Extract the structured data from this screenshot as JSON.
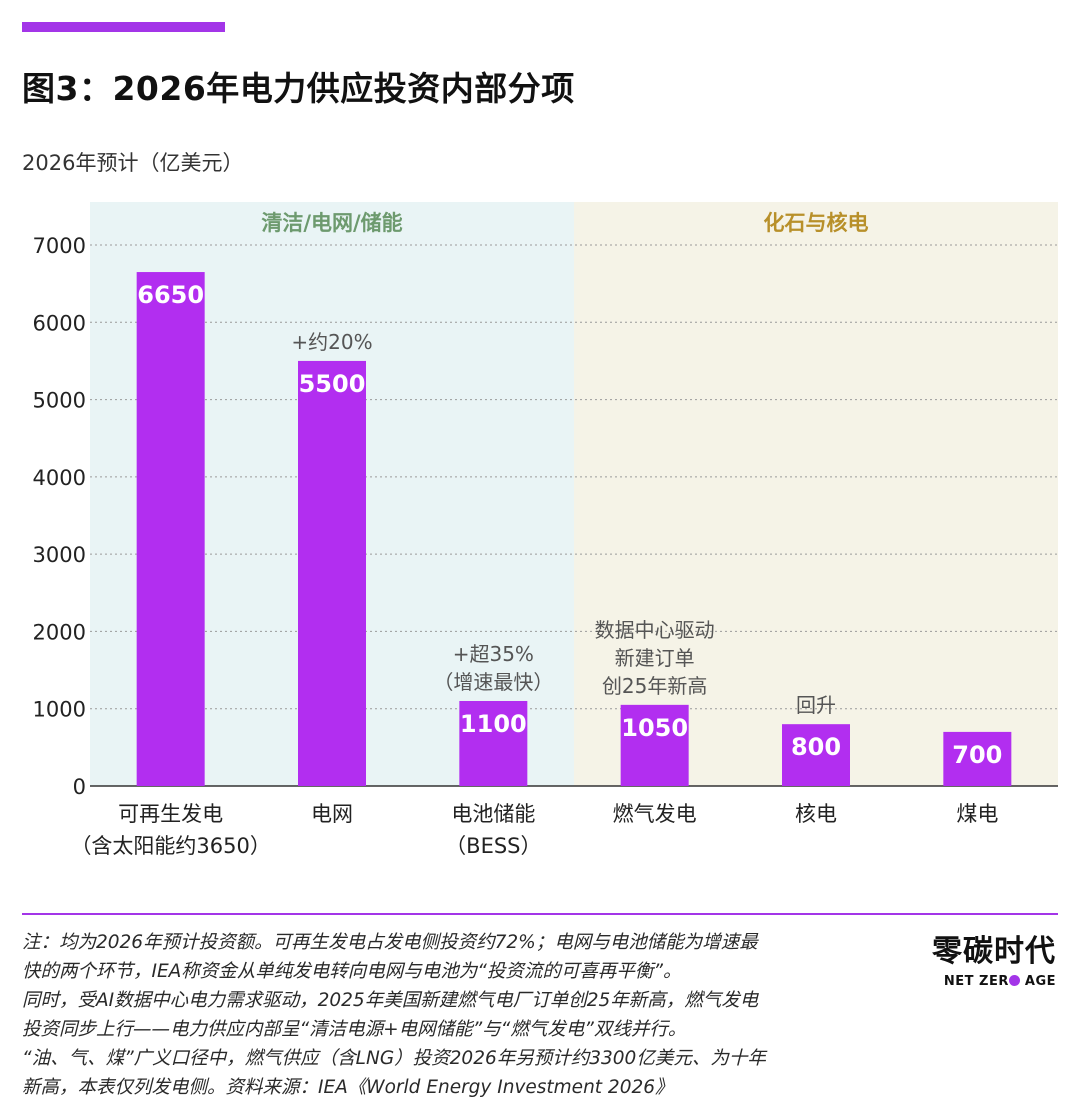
{
  "header": {
    "title": "图3：2026年电力供应投资内部分项",
    "unit_label": "2026年预计（亿美元）"
  },
  "colors": {
    "accent": "#a335e8",
    "bar": "#b22ef0",
    "group_clean_bg": "#e9f4f5",
    "group_fossil_bg": "#f5f3e7",
    "group_clean_text": "#6d9a6e",
    "group_fossil_text": "#b8902a",
    "annotation": "#555555"
  },
  "chart_data": {
    "type": "bar",
    "ylim": [
      0,
      7000
    ],
    "yticks": [
      0,
      1000,
      2000,
      3000,
      4000,
      5000,
      6000,
      7000
    ],
    "grid": true,
    "groups": [
      {
        "label": "清洁/电网/储能",
        "start": 0,
        "end": 2
      },
      {
        "label": "化石与核电",
        "start": 3,
        "end": 5
      }
    ],
    "categories": [
      [
        "可再生发电",
        "（含太阳能约3650）"
      ],
      [
        "电网"
      ],
      [
        "电池储能",
        "（BESS）"
      ],
      [
        "燃气发电"
      ],
      [
        "核电"
      ],
      [
        "煤电"
      ]
    ],
    "values": [
      6650,
      5500,
      1100,
      1050,
      800,
      700
    ],
    "value_labels": [
      "6650",
      "5500",
      "1100",
      "1050",
      "800",
      "700"
    ],
    "annotations": [
      [],
      [
        "+约20%"
      ],
      [
        "+超35%",
        "（增速最快）"
      ],
      [
        "数据中心驱动",
        "新建订单",
        "创25年新高"
      ],
      [
        "回升"
      ],
      []
    ]
  },
  "footnote": {
    "lines": [
      "注：均为2026年预计投资额。可再生发电占发电侧投资约72%；电网与电池储能为增速最",
      "快的两个环节，IEA称资金从单纯发电转向电网与电池为“投资流的可喜再平衡”。",
      "同时，受AI数据中心电力需求驱动，2025年美国新建燃气电厂订单创25年新高，燃气发电",
      "投资同步上行——电力供应内部呈“清洁电源+电网储能”与“燃气发电”双线并行。",
      "“油、气、煤”广义口径中，燃气供应（含LNG）投资2026年另预计约3300亿美元、为十年",
      "新高，本表仅列发电侧。资料来源：IEA《World Energy Investment 2026》"
    ]
  },
  "brand": {
    "name_cn": "零碳时代",
    "name_en_a": "NET ZER",
    "name_en_b": " AGE"
  }
}
